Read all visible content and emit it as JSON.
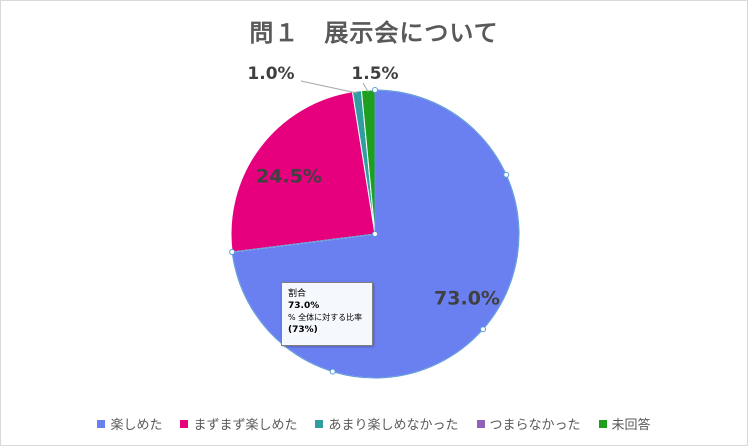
{
  "chart_data": {
    "type": "pie",
    "title": "問１　展示会について",
    "categories": [
      "楽しめた",
      "まずまず楽しめた",
      "あまり楽しめなかった",
      "つまらなかった",
      "未回答"
    ],
    "values": [
      73.0,
      24.5,
      1.0,
      0.0,
      1.5
    ],
    "data_labels": [
      "73.0%",
      "24.5%",
      "1.0%",
      "",
      "1.5%"
    ],
    "colors": [
      "#6a7ff0",
      "#e6007e",
      "#2f9ea0",
      "#8e63b5",
      "#1ea01e"
    ],
    "legend_position": "bottom",
    "selected_slice": 0
  },
  "tooltip": {
    "series_name": "割合",
    "value": "73.0%",
    "description": "% 全体に対する比率",
    "percent": "(73%)"
  }
}
